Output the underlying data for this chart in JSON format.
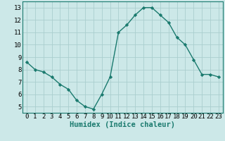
{
  "x": [
    0,
    1,
    2,
    3,
    4,
    5,
    6,
    7,
    8,
    9,
    10,
    11,
    12,
    13,
    14,
    15,
    16,
    17,
    18,
    19,
    20,
    21,
    22,
    23
  ],
  "y": [
    8.6,
    8.0,
    7.8,
    7.4,
    6.8,
    6.4,
    5.5,
    5.0,
    4.8,
    6.0,
    7.4,
    11.0,
    11.6,
    12.4,
    13.0,
    13.0,
    12.4,
    11.8,
    10.6,
    10.0,
    8.8,
    7.6,
    7.6,
    7.4
  ],
  "xlabel": "Humidex (Indice chaleur)",
  "ylim": [
    4.5,
    13.5
  ],
  "xlim": [
    -0.5,
    23.5
  ],
  "yticks": [
    5,
    6,
    7,
    8,
    9,
    10,
    11,
    12,
    13
  ],
  "xticks": [
    0,
    1,
    2,
    3,
    4,
    5,
    6,
    7,
    8,
    9,
    10,
    11,
    12,
    13,
    14,
    15,
    16,
    17,
    18,
    19,
    20,
    21,
    22,
    23
  ],
  "line_color": "#1a7a6e",
  "marker": "D",
  "marker_size": 2.2,
  "bg_color": "#cce8e8",
  "grid_color": "#aacece",
  "xlabel_fontsize": 7.5,
  "tick_fontsize": 6.5
}
